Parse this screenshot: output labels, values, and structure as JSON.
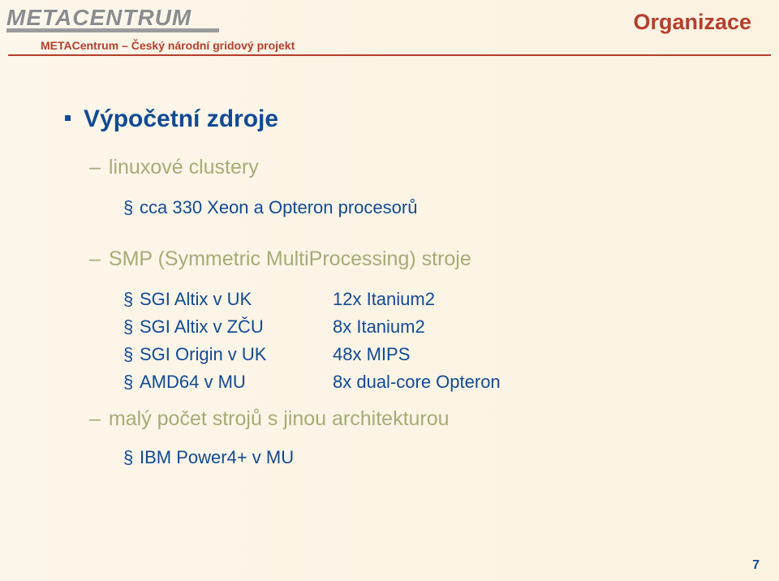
{
  "colors": {
    "title": "#b53e2c",
    "heading": "#114a95",
    "subhead": "#a5ac77",
    "logo_gray": "#8a8c8e",
    "background_from": "#fdf6ea",
    "background_to": "#fcf2e0"
  },
  "logo": {
    "text": "METACENTRUM"
  },
  "header": {
    "section": "Organizace",
    "subtitle": "METACentrum – Český národní gridový projekt"
  },
  "content": {
    "heading": "Výpočetní zdroje",
    "group1": {
      "title": "linuxové clustery",
      "items": [
        "cca 330 Xeon a Opteron procesorů"
      ]
    },
    "group2": {
      "title": "SMP (Symmetric MultiProcessing) stroje",
      "rows": [
        {
          "label": "SGI Altix v UK",
          "value": "12x  Itanium2"
        },
        {
          "label": "SGI Altix v ZČU",
          "value": "8x   Itanium2"
        },
        {
          "label": "SGI Origin v UK",
          "value": "48x  MIPS"
        },
        {
          "label": "AMD64 v MU",
          "value": "8x   dual-core Opteron"
        }
      ]
    },
    "group3": {
      "title": "malý počet strojů s jinou architekturou",
      "items": [
        "IBM Power4+ v MU"
      ]
    }
  },
  "page_number": "7"
}
